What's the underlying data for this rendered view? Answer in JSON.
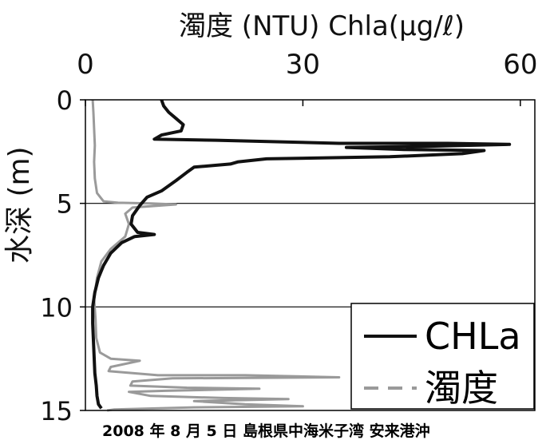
{
  "chart_data": {
    "type": "line",
    "title": "濁度 (NTU) Chla(μg/ℓ)",
    "ylabel": "水深 (m)",
    "caption": "2008 年 8 月 5 日 島根県中海米子湾 安来港沖",
    "x_ticks": [
      "0",
      "30",
      "60"
    ],
    "y_ticks": [
      "0",
      "5",
      "10",
      "15"
    ],
    "xlim": [
      0,
      62
    ],
    "ylim": [
      0,
      15
    ],
    "y_inverted": true,
    "grid_y": [
      5,
      10
    ],
    "legend_position": "bottom-right",
    "colors": {
      "chla": "#111111",
      "turbidity": "#9a9a9a"
    },
    "series": [
      {
        "name": "CHLa",
        "style": "solid",
        "points": [
          [
            10.5,
            0.0
          ],
          [
            10.8,
            0.3
          ],
          [
            11.5,
            0.6
          ],
          [
            12.5,
            0.9
          ],
          [
            13.5,
            1.2
          ],
          [
            13.2,
            1.5
          ],
          [
            10.5,
            1.7
          ],
          [
            9.5,
            1.9
          ],
          [
            18,
            1.95
          ],
          [
            35,
            2.1
          ],
          [
            50,
            2.1
          ],
          [
            58.5,
            2.15
          ],
          [
            47,
            2.25
          ],
          [
            36,
            2.3
          ],
          [
            44,
            2.4
          ],
          [
            55,
            2.45
          ],
          [
            52,
            2.6
          ],
          [
            42,
            2.75
          ],
          [
            25,
            2.85
          ],
          [
            21,
            3.0
          ],
          [
            20,
            3.1
          ],
          [
            15,
            3.25
          ],
          [
            14,
            3.5
          ],
          [
            12.5,
            3.9
          ],
          [
            10.5,
            4.4
          ],
          [
            8.5,
            4.7
          ],
          [
            7.5,
            5.1
          ],
          [
            6.5,
            5.6
          ],
          [
            6.3,
            6.0
          ],
          [
            7.2,
            6.4
          ],
          [
            9.5,
            6.5
          ],
          [
            6.8,
            6.6
          ],
          [
            5.0,
            6.9
          ],
          [
            3.5,
            7.4
          ],
          [
            2.5,
            8.0
          ],
          [
            1.8,
            8.6
          ],
          [
            1.3,
            9.3
          ],
          [
            1.0,
            10.0
          ],
          [
            1.0,
            10.8
          ],
          [
            1.1,
            11.6
          ],
          [
            1.2,
            12.4
          ],
          [
            1.3,
            13.2
          ],
          [
            1.5,
            13.8
          ],
          [
            1.6,
            14.3
          ],
          [
            1.8,
            14.7
          ],
          [
            2.2,
            14.9
          ]
        ]
      },
      {
        "name": "濁度",
        "style": "dashed",
        "points": [
          [
            1.0,
            0.0
          ],
          [
            1.1,
            0.6
          ],
          [
            1.2,
            1.4
          ],
          [
            1.3,
            2.2
          ],
          [
            1.2,
            3.0
          ],
          [
            1.3,
            3.8
          ],
          [
            1.6,
            4.5
          ],
          [
            2.5,
            4.9
          ],
          [
            4.5,
            4.97
          ],
          [
            9.0,
            5.0
          ],
          [
            12.5,
            5.05
          ],
          [
            6.5,
            5.2
          ],
          [
            5.5,
            5.5
          ],
          [
            6.0,
            6.0
          ],
          [
            5.5,
            6.6
          ],
          [
            3.5,
            7.2
          ],
          [
            2.2,
            7.8
          ],
          [
            1.6,
            8.6
          ],
          [
            1.2,
            9.6
          ],
          [
            1.4,
            10.6
          ],
          [
            1.5,
            11.5
          ],
          [
            2.0,
            12.2
          ],
          [
            3.5,
            12.5
          ],
          [
            7.5,
            12.6
          ],
          [
            3.5,
            12.9
          ],
          [
            3.2,
            13.1
          ],
          [
            10,
            13.3
          ],
          [
            22,
            13.3
          ],
          [
            35,
            13.4
          ],
          [
            12,
            13.45
          ],
          [
            6.5,
            13.6
          ],
          [
            6.2,
            13.8
          ],
          [
            14,
            13.9
          ],
          [
            24,
            13.95
          ],
          [
            11,
            14.05
          ],
          [
            6.0,
            14.1
          ],
          [
            9,
            14.3
          ],
          [
            19,
            14.4
          ],
          [
            28,
            14.45
          ],
          [
            15,
            14.55
          ],
          [
            22,
            14.7
          ],
          [
            30,
            14.8
          ],
          [
            15,
            14.85
          ],
          [
            4,
            14.95
          ],
          [
            3.0,
            15.0
          ]
        ]
      }
    ]
  },
  "legend": {
    "chla_label": "CHLa",
    "turbidity_label": "濁度"
  }
}
